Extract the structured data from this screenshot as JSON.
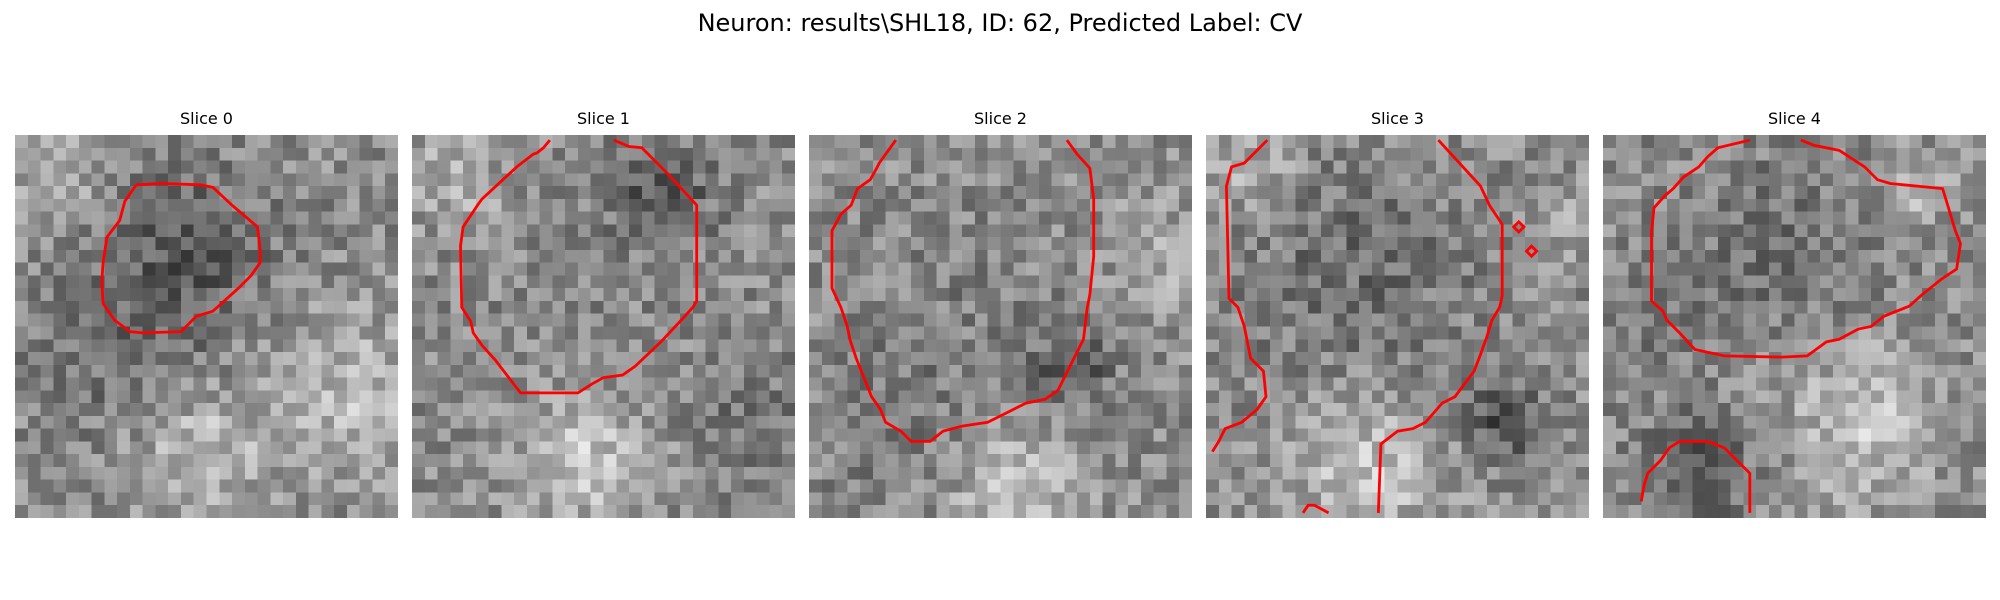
{
  "figure": {
    "title": "Neuron: results\\SHL18, ID: 62, Predicted Label: CV",
    "contour_color": "#ff0000",
    "panels": [
      {
        "title": "Slice 0"
      },
      {
        "title": "Slice 1"
      },
      {
        "title": "Slice 2"
      },
      {
        "title": "Slice 3"
      },
      {
        "title": "Slice 4"
      }
    ]
  }
}
